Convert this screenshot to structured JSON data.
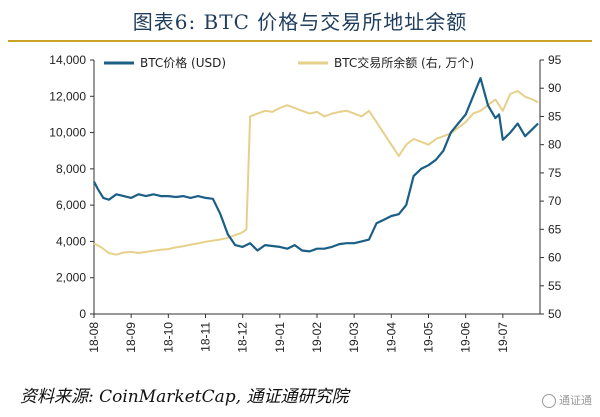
{
  "title": "图表6: BTC 价格与交易所地址余额",
  "source": "资料来源: CoinMarketCap, 通证通研究院",
  "watermark": "通证通",
  "colors": {
    "price": "#1b5e86",
    "balance": "#e6d08a",
    "axis": "#333333"
  },
  "chart_data": {
    "type": "line",
    "categories": [
      "18-08",
      "18-09",
      "18-10",
      "18-11",
      "18-12",
      "19-01",
      "19-02",
      "19-03",
      "19-04",
      "19-05",
      "19-06",
      "19-07"
    ],
    "left_axis": {
      "range": [
        0,
        14000
      ],
      "ticks": [
        "0",
        "2,000",
        "4,000",
        "6,000",
        "8,000",
        "10,000",
        "12,000",
        "14,000"
      ]
    },
    "right_axis": {
      "range": [
        50,
        95
      ],
      "ticks": [
        "50",
        "55",
        "60",
        "65",
        "70",
        "75",
        "80",
        "85",
        "90",
        "95"
      ]
    },
    "legend_position": "top",
    "grid": false,
    "series": [
      {
        "name": "BTC价格 (USD)",
        "axis": "left",
        "color": "#1b5e86",
        "x": [
          0,
          0.1,
          0.25,
          0.4,
          0.6,
          0.8,
          1.0,
          1.2,
          1.4,
          1.6,
          1.8,
          2.0,
          2.2,
          2.4,
          2.6,
          2.8,
          3.0,
          3.2,
          3.4,
          3.6,
          3.8,
          4.0,
          4.2,
          4.4,
          4.6,
          4.8,
          5.0,
          5.2,
          5.4,
          5.6,
          5.8,
          6.0,
          6.2,
          6.4,
          6.6,
          6.8,
          7.0,
          7.2,
          7.4,
          7.6,
          7.8,
          8.0,
          8.2,
          8.4,
          8.6,
          8.8,
          9.0,
          9.2,
          9.4,
          9.6,
          9.8,
          10.0,
          10.2,
          10.4,
          10.6,
          10.8,
          10.9,
          11.0,
          11.2,
          11.4,
          11.6,
          11.8,
          11.95
        ],
        "values": [
          7300,
          6900,
          6400,
          6300,
          6600,
          6500,
          6400,
          6600,
          6500,
          6600,
          6500,
          6500,
          6450,
          6500,
          6400,
          6500,
          6400,
          6350,
          5500,
          4400,
          3800,
          3700,
          3900,
          3500,
          3800,
          3750,
          3700,
          3600,
          3800,
          3500,
          3450,
          3600,
          3600,
          3700,
          3850,
          3900,
          3900,
          4000,
          4100,
          5000,
          5200,
          5400,
          5500,
          6000,
          7600,
          8000,
          8200,
          8500,
          9000,
          10000,
          10500,
          11000,
          12000,
          13000,
          11500,
          10800,
          11000,
          9600,
          10000,
          10500,
          9800,
          10200,
          10500
        ]
      },
      {
        "name": "BTC交易所余额 (右, 万个)",
        "axis": "right",
        "color": "#e6d08a",
        "x": [
          0,
          0.2,
          0.4,
          0.6,
          0.8,
          1.0,
          1.2,
          1.4,
          1.6,
          1.8,
          2.0,
          2.2,
          2.4,
          2.6,
          2.8,
          3.0,
          3.2,
          3.4,
          3.6,
          3.8,
          3.9,
          4.0,
          4.1,
          4.2,
          4.4,
          4.6,
          4.8,
          5.0,
          5.2,
          5.4,
          5.6,
          5.8,
          6.0,
          6.2,
          6.4,
          6.6,
          6.8,
          7.0,
          7.2,
          7.4,
          7.6,
          7.8,
          8.0,
          8.2,
          8.4,
          8.6,
          8.8,
          9.0,
          9.2,
          9.4,
          9.6,
          9.8,
          10.0,
          10.2,
          10.4,
          10.6,
          10.8,
          11.0,
          11.2,
          11.4,
          11.6,
          11.8,
          11.95
        ],
        "values": [
          62.5,
          61.8,
          60.8,
          60.5,
          60.9,
          61.0,
          60.8,
          61.0,
          61.2,
          61.4,
          61.5,
          61.8,
          62.0,
          62.3,
          62.5,
          62.8,
          63.0,
          63.2,
          63.5,
          64.0,
          64.2,
          64.5,
          65.0,
          85.0,
          85.5,
          86.0,
          85.8,
          86.5,
          87.0,
          86.5,
          86.0,
          85.5,
          85.8,
          85.0,
          85.5,
          85.8,
          86.0,
          85.5,
          85.0,
          86.0,
          84.0,
          82.0,
          80.0,
          78.0,
          80.0,
          81.0,
          80.5,
          80.0,
          81.0,
          81.5,
          82.0,
          83.0,
          84.0,
          85.5,
          86.0,
          87.0,
          88.0,
          86.0,
          89.0,
          89.5,
          88.5,
          88.0,
          87.5
        ]
      }
    ]
  }
}
